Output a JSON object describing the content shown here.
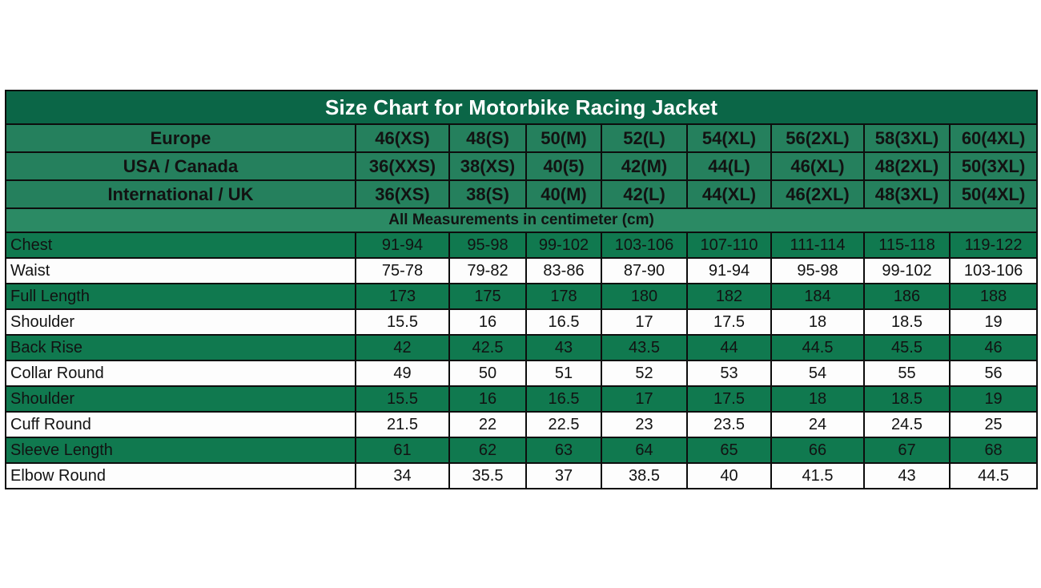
{
  "title": "Size Chart for Motorbike Racing Jacket",
  "note": "All Measurements in centimeter (cm)",
  "size_rows": [
    {
      "label": "Europe",
      "values": [
        "46(XS)",
        "48(S)",
        "50(M)",
        "52(L)",
        "54(XL)",
        "56(2XL)",
        "58(3XL)",
        "60(4XL)"
      ]
    },
    {
      "label": "USA / Canada",
      "values": [
        "36(XXS)",
        "38(XS)",
        "40(5)",
        "42(M)",
        "44(L)",
        "46(XL)",
        "48(2XL)",
        "50(3XL)"
      ]
    },
    {
      "label": "International / UK",
      "values": [
        "36(XS)",
        "38(S)",
        "40(M)",
        "42(L)",
        "44(XL)",
        "46(2XL)",
        "48(3XL)",
        "50(4XL)"
      ]
    }
  ],
  "measurement_rows": [
    {
      "label": "Chest",
      "values": [
        "91-94",
        "95-98",
        "99-102",
        "103-106",
        "107-110",
        "111-114",
        "115-118",
        "119-122"
      ]
    },
    {
      "label": "Waist",
      "values": [
        "75-78",
        "79-82",
        "83-86",
        "87-90",
        "91-94",
        "95-98",
        "99-102",
        "103-106"
      ]
    },
    {
      "label": "Full Length",
      "values": [
        "173",
        "175",
        "178",
        "180",
        "182",
        "184",
        "186",
        "188"
      ]
    },
    {
      "label": "Shoulder",
      "values": [
        "15.5",
        "16",
        "16.5",
        "17",
        "17.5",
        "18",
        "18.5",
        "19"
      ]
    },
    {
      "label": "Back Rise",
      "values": [
        "42",
        "42.5",
        "43",
        "43.5",
        "44",
        "44.5",
        "45.5",
        "46"
      ]
    },
    {
      "label": "Collar Round",
      "values": [
        "49",
        "50",
        "51",
        "52",
        "53",
        "54",
        "55",
        "56"
      ]
    },
    {
      "label": "Shoulder",
      "values": [
        "15.5",
        "16",
        "16.5",
        "17",
        "17.5",
        "18",
        "18.5",
        "19"
      ]
    },
    {
      "label": "Cuff Round",
      "values": [
        "21.5",
        "22",
        "22.5",
        "23",
        "23.5",
        "24",
        "24.5",
        "25"
      ]
    },
    {
      "label": "Sleeve Length",
      "values": [
        "61",
        "62",
        "63",
        "64",
        "65",
        "66",
        "67",
        "68"
      ]
    },
    {
      "label": "Elbow Round",
      "values": [
        "34",
        "35.5",
        "37",
        "38.5",
        "40",
        "41.5",
        "43",
        "44.5"
      ]
    }
  ],
  "colors": {
    "title_bg": "#0b6647",
    "title_text": "#ffffff",
    "header_row_bg": "#25805d",
    "note_bg": "#2b8a64",
    "green_row_bg": "#10794f",
    "white_row_bg": "#fdfdfd",
    "border": "#0d0d0d",
    "text": "#121212"
  }
}
